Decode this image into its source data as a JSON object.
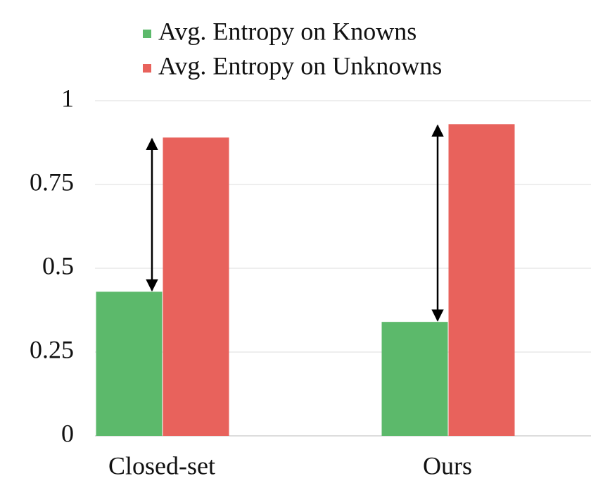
{
  "chart_data": {
    "type": "bar",
    "categories": [
      "Closed-set",
      "Ours"
    ],
    "series": [
      {
        "name": "Avg. Entropy on Knowns",
        "color": "#5cb96b",
        "values": [
          0.43,
          0.34
        ]
      },
      {
        "name": "Avg. Entropy on Unknowns",
        "color": "#e8625c",
        "values": [
          0.89,
          0.93
        ]
      }
    ],
    "ylim": [
      0,
      1
    ],
    "yticks": [
      0,
      0.25,
      0.5,
      0.75,
      1
    ],
    "grid": true
  }
}
